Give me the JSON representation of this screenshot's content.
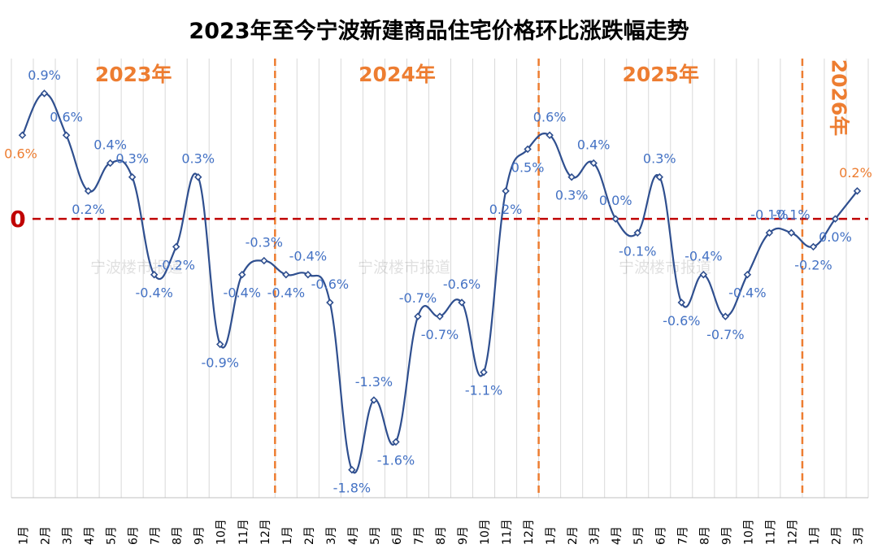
{
  "chart_data": {
    "type": "line",
    "title": "2023年至今宁波新建商品住宅价格环比涨跌幅走势",
    "watermark": "宁波楼市报道",
    "zero_label": "0",
    "xlabel": "",
    "ylabel": "",
    "ylim": [
      -2.0,
      1.15
    ],
    "grid": "vertical",
    "legend": "none",
    "year_labels": [
      "2023年",
      "2024年",
      "2025年",
      "2026年"
    ],
    "year_separators_after_index": [
      11,
      23,
      35
    ],
    "categories": [
      "1月",
      "2月",
      "3月",
      "4月",
      "5月",
      "6月",
      "7月",
      "8月",
      "9月",
      "10月",
      "11月",
      "12月",
      "1月",
      "2月",
      "3月",
      "4月",
      "5月",
      "6月",
      "7月",
      "8月",
      "9月",
      "10月",
      "11月",
      "12月",
      "1月",
      "2月",
      "3月",
      "4月",
      "5月",
      "6月",
      "7月",
      "8月",
      "9月",
      "10月",
      "11月",
      "12月",
      "1月",
      "2月",
      "3月"
    ],
    "series": [
      {
        "values": [
          0.6,
          0.9,
          0.6,
          0.2,
          0.4,
          0.3,
          -0.4,
          -0.2,
          0.3,
          -0.9,
          -0.4,
          -0.3,
          -0.4,
          -0.4,
          -0.6,
          -1.8,
          -1.3,
          -1.6,
          -0.7,
          -0.7,
          -0.6,
          -1.1,
          0.2,
          0.5,
          0.6,
          0.3,
          0.4,
          0.0,
          -0.1,
          0.3,
          -0.6,
          -0.4,
          -0.7,
          -0.4,
          -0.1,
          -0.1,
          -0.2,
          0.0,
          0.2
        ],
        "labels": [
          "0.6%",
          "0.9%",
          "0.6%",
          "0.2%",
          "0.4%",
          "0.3%",
          "-0.4%",
          "-0.2%",
          "0.3%",
          "-0.9%",
          "-0.4%",
          "-0.3%",
          "-0.4%",
          "-0.4%",
          "-0.6%",
          "-1.8%",
          "-1.3%",
          "-1.6%",
          "-0.7%",
          "-0.7%",
          "-0.6%",
          "-1.1%",
          "0.2%",
          "0.5%",
          "0.6%",
          "0.3%",
          "0.4%",
          "0.0%",
          "-0.1%",
          "0.3%",
          "-0.6%",
          "-0.4%",
          "-0.7%",
          "-0.4%",
          "-0.1%",
          "-0.1%",
          "-0.2%",
          "0.0%",
          "0.2%"
        ]
      }
    ],
    "colors": {
      "line": "#2F4F8F",
      "label": "#4472C4",
      "highlight_label": "#ED7D31",
      "year_label": "#ED7D31",
      "separator": "#ED7D31",
      "zero_line": "#C00000",
      "grid": "#D9D9D9",
      "title": "#000000"
    }
  }
}
